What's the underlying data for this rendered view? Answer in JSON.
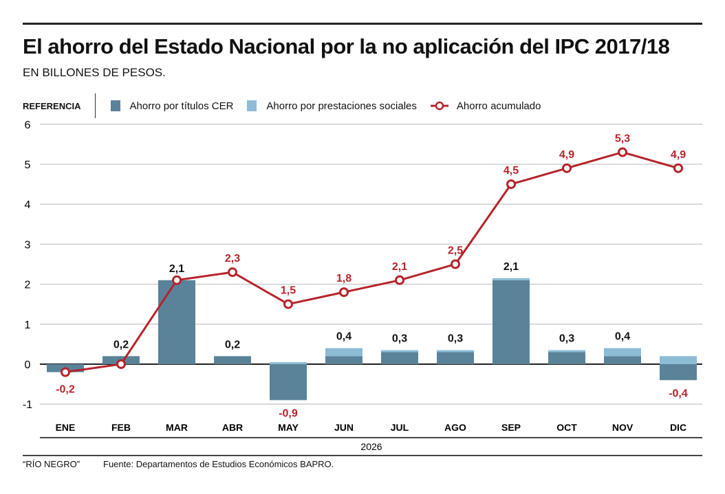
{
  "chart_data": {
    "type": "bar",
    "title": "El ahorro del Estado Nacional por la no aplicación del IPC 2017/18",
    "subtitle": "EN BILLONES DE PESOS.",
    "xlabel": "2026",
    "ylabel": "",
    "ylim": [
      -1,
      6
    ],
    "yticks": [
      "-1",
      "0",
      "1",
      "2",
      "3",
      "4",
      "5",
      "6"
    ],
    "categories": [
      "ENE",
      "FEB",
      "MAR",
      "ABR",
      "MAY",
      "JUN",
      "JUL",
      "AGO",
      "SEP",
      "OCT",
      "NOV",
      "DIC"
    ],
    "series": [
      {
        "name": "Ahorro por títulos CER",
        "type": "bar",
        "color": "#5a8399",
        "values": [
          -0.2,
          0.2,
          2.1,
          0.2,
          -0.9,
          0.2,
          0.3,
          0.3,
          2.1,
          0.3,
          0.2,
          -0.4
        ]
      },
      {
        "name": "Ahorro por prestaciones sociales",
        "type": "bar",
        "color": "#8dbcd6",
        "values": [
          0,
          0,
          0,
          0,
          0.05,
          0.2,
          0.05,
          0.05,
          0.05,
          0.05,
          0.2,
          0.2
        ]
      },
      {
        "name": "Ahorro acumulado",
        "type": "line",
        "color": "#b5232a",
        "values": [
          -0.2,
          0,
          2.1,
          2.3,
          1.5,
          1.8,
          2.1,
          2.5,
          4.5,
          4.9,
          5.3,
          4.9
        ]
      }
    ],
    "bar_labels": [
      "",
      "0,2",
      "2,1",
      "0,2",
      "-0,9",
      "0,4",
      "0,3",
      "0,3",
      "2,1",
      "0,3",
      "0,4",
      "-0,4"
    ],
    "bar_label_neg": [
      false,
      false,
      false,
      false,
      true,
      false,
      false,
      false,
      false,
      false,
      false,
      true
    ],
    "line_labels": [
      "-0,2",
      "",
      "",
      "2,3",
      "1,5",
      "1,8",
      "2,1",
      "2,5",
      "4,5",
      "4,9",
      "5,3",
      "4,9"
    ],
    "line_label_below": [
      true,
      false,
      false,
      false,
      false,
      false,
      false,
      false,
      false,
      false,
      false,
      false
    ],
    "grid": true,
    "legend": "top-left"
  },
  "legend_ref": "REFERENCIA",
  "footer": {
    "credit": "“RÍO NEGRO”",
    "source": "Fuente: Departamentos de Estudios Económicos BAPRO."
  }
}
